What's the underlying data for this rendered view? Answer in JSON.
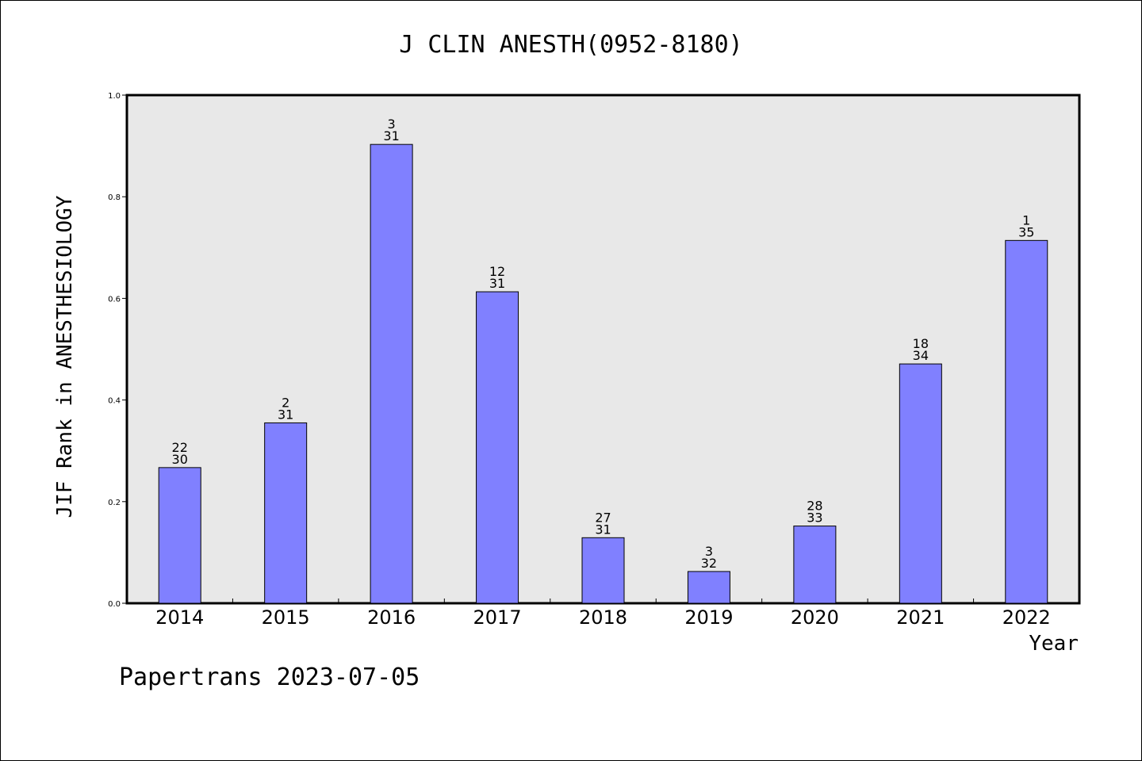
{
  "chart_data": {
    "type": "bar",
    "title": "J CLIN ANESTH(0952-8180)",
    "xlabel": "Year",
    "ylabel": "JIF Rank in ANESTHESIOLOGY",
    "ylim": [
      0,
      1.0
    ],
    "yticks": [
      "0.0",
      "0.2",
      "0.4",
      "0.6",
      "0.8",
      "1.0"
    ],
    "categories": [
      "2014",
      "2015",
      "2016",
      "2017",
      "2018",
      "2019",
      "2020",
      "2021",
      "2022"
    ],
    "values": [
      0.267,
      0.355,
      0.903,
      0.613,
      0.129,
      0.0625,
      0.152,
      0.471,
      0.714
    ],
    "rank": [
      "22",
      "2",
      "3",
      "12",
      "27",
      "3",
      "28",
      "18",
      "1"
    ],
    "total": [
      "30",
      "31",
      "31",
      "31",
      "31",
      "32",
      "33",
      "34",
      "35"
    ],
    "bar_color": "#8080ff",
    "plot_background": "#e8e8e8",
    "grid": false,
    "legend": "none"
  },
  "footer": "Papertrans 2023-07-05"
}
